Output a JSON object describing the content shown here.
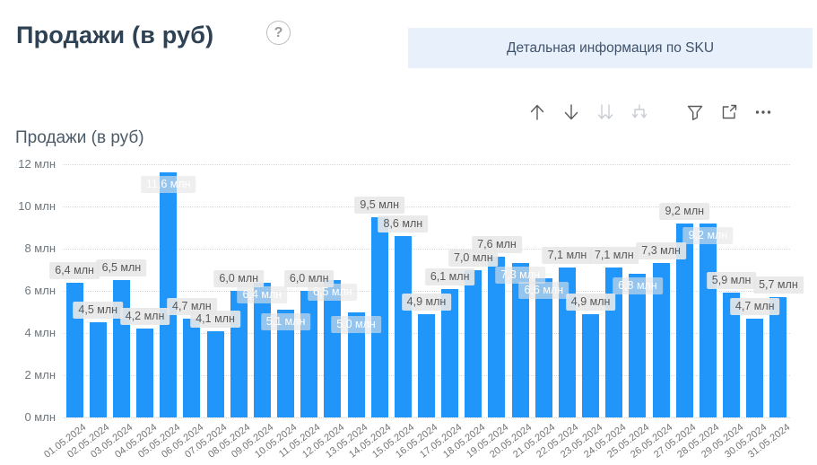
{
  "header": {
    "title": "Продажи (в руб)",
    "help_glyph": "?",
    "detail_button_label": "Детальная информация по SKU"
  },
  "toolbar": {
    "icons": [
      {
        "name": "drill-up",
        "enabled": true
      },
      {
        "name": "drill-down",
        "enabled": true
      },
      {
        "name": "drill-down-level",
        "enabled": false
      },
      {
        "name": "expand-all-levels",
        "enabled": false
      },
      {
        "name": "filter",
        "enabled": true
      },
      {
        "name": "focus-mode",
        "enabled": true
      },
      {
        "name": "more-options",
        "enabled": true
      }
    ]
  },
  "chart_data": {
    "type": "bar",
    "title": "Продажи (в руб)",
    "unit": "млн",
    "ylim": [
      0,
      12
    ],
    "grid": true,
    "legend": "none",
    "bar_color": "#2095fa",
    "y_ticks": [
      "0 млн",
      "2 млн",
      "4 млн",
      "6 млн",
      "8 млн",
      "10 млн",
      "12 млн"
    ],
    "categories": [
      "01.05.2024",
      "02.05.2024",
      "03.05.2024",
      "04.05.2024",
      "05.05.2024",
      "06.05.2024",
      "07.05.2024",
      "08.05.2024",
      "09.05.2024",
      "10.05.2024",
      "11.05.2024",
      "12.05.2024",
      "13.05.2024",
      "14.05.2024",
      "15.05.2024",
      "16.05.2024",
      "17.05.2024",
      "18.05.2024",
      "19.05.2024",
      "20.05.2024",
      "21.05.2024",
      "22.05.2024",
      "23.05.2024",
      "24.05.2024",
      "25.05.2024",
      "26.05.2024",
      "27.05.2024",
      "28.05.2024",
      "29.05.2024",
      "30.05.2024",
      "31.05.2024"
    ],
    "values": [
      6.4,
      4.5,
      6.5,
      4.2,
      11.6,
      4.7,
      4.1,
      6.0,
      6.4,
      5.1,
      6.0,
      6.5,
      5.0,
      9.5,
      8.6,
      4.9,
      6.1,
      7.0,
      7.6,
      7.3,
      6.6,
      7.1,
      4.9,
      7.1,
      6.8,
      7.3,
      9.2,
      9.2,
      5.9,
      4.7,
      5.7
    ],
    "data_labels": [
      "6,4 млн",
      "4,5 млн",
      "6,5 млн",
      "4,2 млн",
      "11,6 млн",
      "4,7 млн",
      "4,1 млн",
      "6,0 млн",
      "6,4 млн",
      "5,1 млн",
      "6,0 млн",
      "6,5 млн",
      "5,0 млн",
      "9,5 млн",
      "8,6 млн",
      "4,9 млн",
      "6,1 млн",
      "7,0 млн",
      "7,6 млн",
      "7,3 млн",
      "6,6 млн",
      "7,1 млн",
      "4,9 млн",
      "7,1 млн",
      "6,8 млн",
      "7,3 млн",
      "9,2 млн",
      "9,2 млн",
      "5,9 млн",
      "4,7 млн",
      "5,7 млн"
    ],
    "label_placement": [
      "above",
      "above",
      "above",
      "above",
      "inside",
      "above",
      "above",
      "above",
      "inside",
      "inside",
      "above",
      "inside",
      "inside",
      "above",
      "above",
      "above",
      "above",
      "above",
      "above",
      "inside",
      "inside",
      "above",
      "above",
      "above",
      "inside",
      "above",
      "above",
      "inside",
      "above",
      "above",
      "above"
    ]
  }
}
